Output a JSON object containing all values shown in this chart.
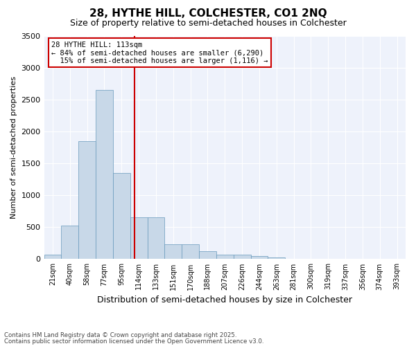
{
  "title": "28, HYTHE HILL, COLCHESTER, CO1 2NQ",
  "subtitle": "Size of property relative to semi-detached houses in Colchester",
  "xlabel": "Distribution of semi-detached houses by size in Colchester",
  "ylabel": "Number of semi-detached properties",
  "bins": [
    "21sqm",
    "40sqm",
    "58sqm",
    "77sqm",
    "95sqm",
    "114sqm",
    "133sqm",
    "151sqm",
    "170sqm",
    "188sqm",
    "207sqm",
    "226sqm",
    "244sqm",
    "263sqm",
    "281sqm",
    "300sqm",
    "319sqm",
    "337sqm",
    "356sqm",
    "374sqm",
    "393sqm"
  ],
  "bar_heights": [
    70,
    530,
    1850,
    2650,
    1350,
    650,
    650,
    230,
    230,
    120,
    75,
    75,
    50,
    30,
    5,
    2,
    0,
    0,
    0,
    0,
    0
  ],
  "bar_color": "#c8d8e8",
  "bar_edge_color": "#6699bb",
  "background_color": "#eef2fb",
  "vline_x": 4.74,
  "vline_color": "#cc0000",
  "annotation_text": "28 HYTHE HILL: 113sqm\n← 84% of semi-detached houses are smaller (6,290)\n  15% of semi-detached houses are larger (1,116) →",
  "annotation_box_color": "#cc0000",
  "ylim": [
    0,
    3500
  ],
  "yticks": [
    0,
    500,
    1000,
    1500,
    2000,
    2500,
    3000,
    3500
  ],
  "footer_line1": "Contains HM Land Registry data © Crown copyright and database right 2025.",
  "footer_line2": "Contains public sector information licensed under the Open Government Licence v3.0."
}
